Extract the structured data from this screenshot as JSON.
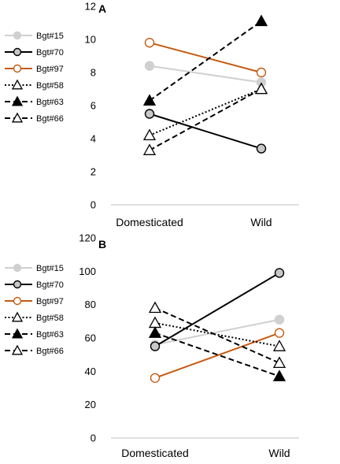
{
  "chart_data": [
    {
      "type": "line",
      "panel_label": "A",
      "categories": [
        "Domesticated",
        "Wild"
      ],
      "ylim": [
        0,
        12
      ],
      "yticks": [
        "0",
        "2",
        "4",
        "6",
        "8",
        "10",
        "12"
      ],
      "series": [
        {
          "name": "Bgt#15",
          "values": [
            8.4,
            7.4
          ],
          "color": "#d0d0d0",
          "dash": "solid",
          "marker": "circle-filled"
        },
        {
          "name": "Bgt#70",
          "values": [
            5.5,
            3.4
          ],
          "color": "#000000",
          "dash": "solid",
          "marker": "circle-grey"
        },
        {
          "name": "Bgt#97",
          "values": [
            9.8,
            8.0
          ],
          "color": "#c55a11",
          "dash": "solid",
          "marker": "circle-open"
        },
        {
          "name": "Bgt#58",
          "values": [
            4.2,
            7.0
          ],
          "color": "#000000",
          "dash": "dotted",
          "marker": "triangle-open"
        },
        {
          "name": "Bgt#63",
          "values": [
            6.3,
            11.1
          ],
          "color": "#000000",
          "dash": "dashed",
          "marker": "triangle-filled"
        },
        {
          "name": "Bgt#66",
          "values": [
            3.3,
            7.0
          ],
          "color": "#000000",
          "dash": "dashed",
          "marker": "triangle-open"
        }
      ]
    },
    {
      "type": "line",
      "panel_label": "B",
      "categories": [
        "Domesticated",
        "Wild"
      ],
      "ylim": [
        0,
        120
      ],
      "yticks": [
        "0",
        "20",
        "40",
        "60",
        "80",
        "100",
        "120"
      ],
      "series": [
        {
          "name": "Bgt#15",
          "values": [
            56,
            71
          ],
          "color": "#d0d0d0",
          "dash": "solid",
          "marker": "circle-filled"
        },
        {
          "name": "Bgt#70",
          "values": [
            55,
            99
          ],
          "color": "#000000",
          "dash": "solid",
          "marker": "circle-grey"
        },
        {
          "name": "Bgt#97",
          "values": [
            36,
            63
          ],
          "color": "#c55a11",
          "dash": "solid",
          "marker": "circle-open"
        },
        {
          "name": "Bgt#58",
          "values": [
            69,
            55
          ],
          "color": "#000000",
          "dash": "dotted",
          "marker": "triangle-open"
        },
        {
          "name": "Bgt#63",
          "values": [
            63,
            37
          ],
          "color": "#000000",
          "dash": "dashed",
          "marker": "triangle-filled"
        },
        {
          "name": "Bgt#66",
          "values": [
            78,
            45
          ],
          "color": "#000000",
          "dash": "dashed",
          "marker": "triangle-open"
        }
      ]
    }
  ]
}
